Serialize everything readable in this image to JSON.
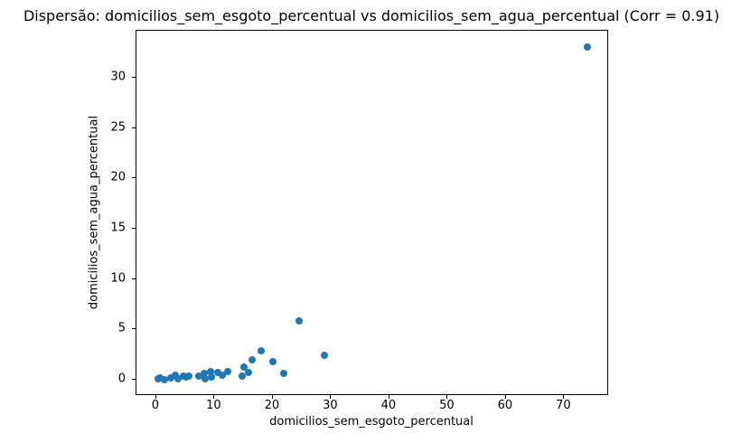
{
  "figure": {
    "background": "#ffffff"
  },
  "chart_data": {
    "type": "scatter",
    "title": "Dispersão: domicilios_sem_esgoto_percentual vs domicilios_sem_agua_percentual (Corr = 0.91)",
    "xlabel": "domicilios_sem_esgoto_percentual",
    "ylabel": "domicilios_sem_agua_percentual",
    "correlation": 0.91,
    "xlim": [
      -3.4,
      77.7
    ],
    "ylim": [
      -1.6,
      34.65
    ],
    "xticks": [
      0,
      10,
      20,
      30,
      40,
      50,
      60,
      70
    ],
    "yticks": [
      0,
      5,
      10,
      15,
      20,
      25,
      30
    ],
    "grid": false,
    "legend": null,
    "marker_color": "#1f77b4",
    "points": [
      [
        0.3,
        0.1
      ],
      [
        0.6,
        0.15
      ],
      [
        1.4,
        0.05
      ],
      [
        2.5,
        0.2
      ],
      [
        3.3,
        0.45
      ],
      [
        3.7,
        0.1
      ],
      [
        4.6,
        0.4
      ],
      [
        5.2,
        0.25
      ],
      [
        5.6,
        0.35
      ],
      [
        7.3,
        0.4
      ],
      [
        8.2,
        0.6
      ],
      [
        8.4,
        0.1
      ],
      [
        9.3,
        0.8
      ],
      [
        9.5,
        0.3
      ],
      [
        10.6,
        0.75
      ],
      [
        11.4,
        0.45
      ],
      [
        12.2,
        0.8
      ],
      [
        14.7,
        0.4
      ],
      [
        15.1,
        1.3
      ],
      [
        15.9,
        0.75
      ],
      [
        16.5,
        2.0
      ],
      [
        18.0,
        2.9
      ],
      [
        20.0,
        1.8
      ],
      [
        21.9,
        0.6
      ],
      [
        24.5,
        5.85
      ],
      [
        28.9,
        2.45
      ],
      [
        74.0,
        33.0
      ]
    ]
  }
}
